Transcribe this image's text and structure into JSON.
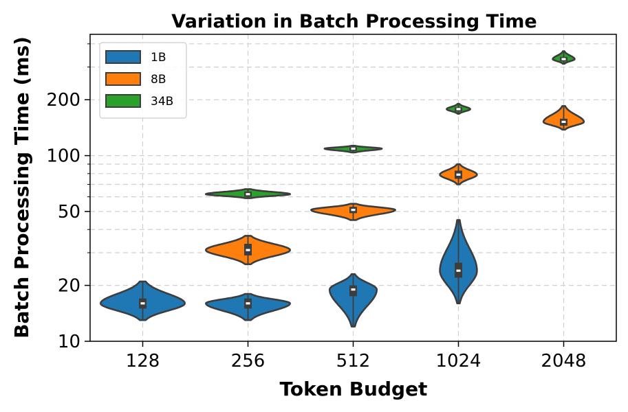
{
  "chart_data": {
    "type": "violin",
    "title": "Variation in Batch Processing Time",
    "xlabel": "Token Budget",
    "ylabel": "Batch Processing Time (ms)",
    "yscale": "log",
    "ylim": [
      10,
      450
    ],
    "yticks": [
      10,
      20,
      50,
      100,
      200
    ],
    "categories": [
      "128",
      "256",
      "512",
      "1024",
      "2048"
    ],
    "grid": true,
    "legend_position": "top-left",
    "series": [
      {
        "name": "1B",
        "color": "#1f77b4",
        "violins": [
          {
            "category": "128",
            "median": 16,
            "q1": 15,
            "q3": 17,
            "min": 13,
            "max": 21,
            "width": 1.0
          },
          {
            "category": "256",
            "median": 16,
            "q1": 15,
            "q3": 17,
            "min": 13,
            "max": 18,
            "width": 1.0
          },
          {
            "category": "512",
            "median": 19,
            "q1": 17.5,
            "q3": 20,
            "min": 12,
            "max": 23,
            "width": 0.56
          },
          {
            "category": "1024",
            "median": 24,
            "q1": 22,
            "q3": 26.5,
            "min": 16,
            "max": 45,
            "width": 0.44
          }
        ]
      },
      {
        "name": "8B",
        "color": "#ff7f0e",
        "violins": [
          {
            "category": "256",
            "median": 31,
            "q1": 29,
            "q3": 33.5,
            "min": 26,
            "max": 37,
            "width": 1.0
          },
          {
            "category": "512",
            "median": 51,
            "q1": 49,
            "q3": 53,
            "min": 45,
            "max": 55,
            "width": 1.0
          },
          {
            "category": "1024",
            "median": 79,
            "q1": 75,
            "q3": 83,
            "min": 70,
            "max": 90,
            "width": 0.44
          },
          {
            "category": "2048",
            "median": 152,
            "q1": 145,
            "q3": 158,
            "min": 138,
            "max": 185,
            "width": 0.48
          }
        ]
      },
      {
        "name": "34B",
        "color": "#2ca02c",
        "violins": [
          {
            "category": "256",
            "median": 62,
            "q1": 60,
            "q3": 64,
            "min": 59,
            "max": 66,
            "width": 1.0
          },
          {
            "category": "512",
            "median": 109,
            "q1": 106,
            "q3": 111,
            "min": 104,
            "max": 113,
            "width": 0.68
          },
          {
            "category": "1024",
            "median": 178,
            "q1": 173,
            "q3": 182,
            "min": 168,
            "max": 190,
            "width": 0.28
          },
          {
            "category": "2048",
            "median": 331,
            "q1": 322,
            "q3": 340,
            "min": 312,
            "max": 365,
            "width": 0.26
          }
        ]
      }
    ]
  }
}
